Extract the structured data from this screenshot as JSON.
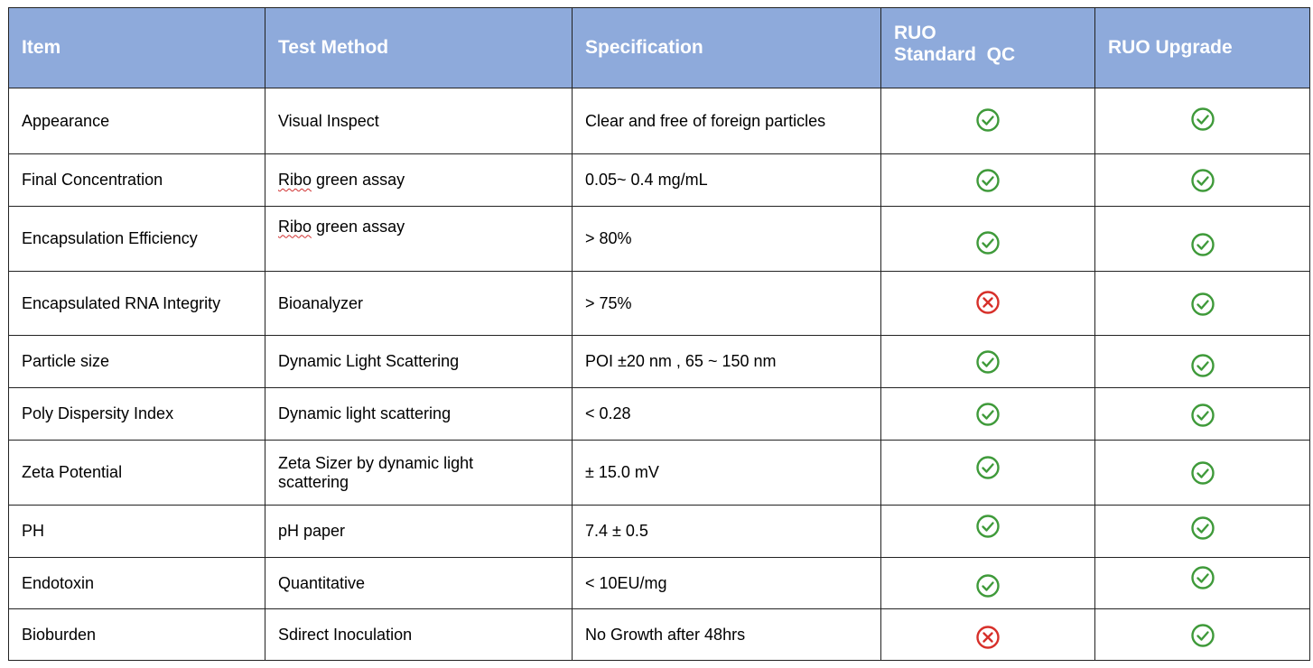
{
  "headers": {
    "item": "Item",
    "method": "Test Method",
    "spec": "Specification",
    "std_line1": "RUO",
    "std_line2": "Standard  QC",
    "upgrade": "RUO Upgrade"
  },
  "rows": [
    {
      "item": "Appearance",
      "method_pre": "",
      "method_spell": "",
      "method_rest": "Visual Inspect",
      "spec": "Clear and free of foreign particles",
      "standard": "pass",
      "upgrade": "pass"
    },
    {
      "item": "Final Concentration",
      "method_pre": "",
      "method_spell": "Ribo",
      "method_rest": " green assay",
      "spec": "0.05~ 0.4 mg/mL",
      "standard": "pass",
      "upgrade": "pass"
    },
    {
      "item": "Encapsulation Efficiency",
      "method_pre": "",
      "method_spell": "Ribo",
      "method_rest": " green assay",
      "spec": "> 80%",
      "standard": "pass",
      "upgrade": "pass"
    },
    {
      "item": "Encapsulated RNA Integrity",
      "method_pre": "",
      "method_spell": "",
      "method_rest": "Bioanalyzer",
      "spec": "> 75%",
      "standard": "fail",
      "upgrade": "pass"
    },
    {
      "item": "Particle size",
      "method_pre": "",
      "method_spell": "",
      "method_rest": "Dynamic Light Scattering",
      "spec": "POI ±20 nm , 65 ~ 150 nm",
      "standard": "pass",
      "upgrade": "pass"
    },
    {
      "item": "Poly Dispersity Index",
      "method_pre": "",
      "method_spell": "",
      "method_rest": "Dynamic light scattering",
      "spec": "< 0.28",
      "standard": "pass",
      "upgrade": "pass"
    },
    {
      "item": "Zeta Potential",
      "method_pre": "",
      "method_spell": "",
      "method_rest": "Zeta Sizer by dynamic light scattering",
      "spec": "± 15.0 mV",
      "standard": "pass",
      "upgrade": "pass"
    },
    {
      "item": "PH",
      "method_pre": "",
      "method_spell": "",
      "method_rest": "pH paper",
      "spec": "7.4 ± 0.5",
      "standard": "pass",
      "upgrade": "pass"
    },
    {
      "item": "Endotoxin",
      "method_pre": "",
      "method_spell": "",
      "method_rest": "Quantitative",
      "spec": "< 10EU/mg",
      "standard": "pass",
      "upgrade": "pass"
    },
    {
      "item": "Bioburden",
      "method_pre": "",
      "method_spell": "",
      "method_rest": "Sdirect Inoculation",
      "spec": "No Growth after 48hrs",
      "standard": "fail",
      "upgrade": "pass"
    }
  ],
  "colors": {
    "header_bg": "#8eaadb",
    "pass": "#3f9a3a",
    "fail": "#d7302a"
  },
  "icons": {
    "pass": "check-circle-icon",
    "fail": "x-circle-icon"
  }
}
